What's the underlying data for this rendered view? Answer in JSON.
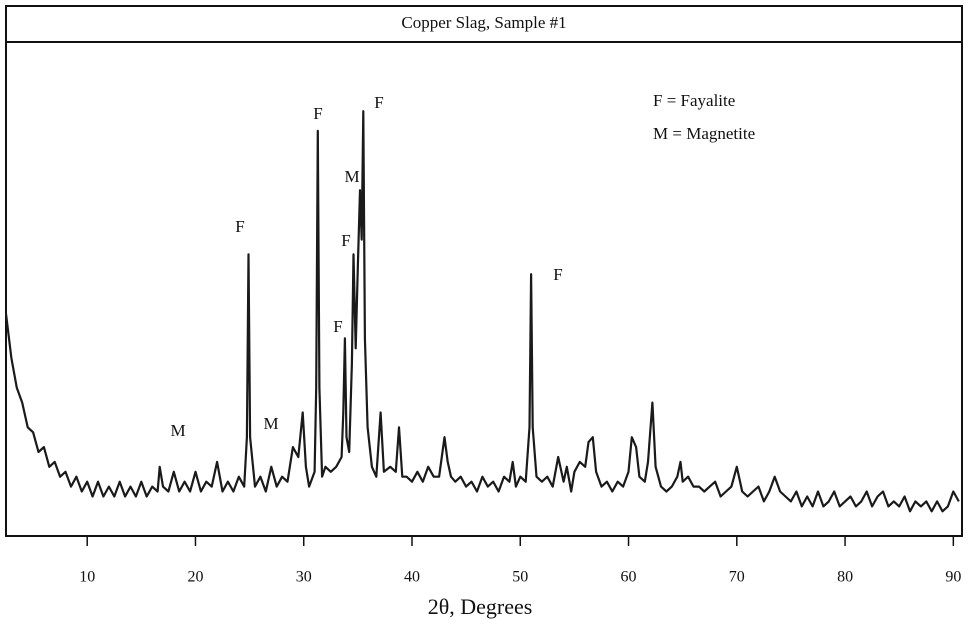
{
  "chart_data": {
    "type": "line",
    "title": "Copper Slag, Sample #1",
    "xlabel": "2θ, Degrees",
    "legend_texts": [
      "F = Fayalite",
      "M = Magnetite"
    ],
    "annotations": [
      "M",
      "M",
      "F",
      "F",
      "F",
      "M",
      "F",
      "F",
      "F"
    ],
    "color": "#1a1a1a",
    "xlim": [
      2.5,
      90.8
    ],
    "ylim": [
      0,
      100
    ],
    "xticks": [
      10,
      20,
      30,
      40,
      50,
      60,
      70,
      80,
      90
    ],
    "x": [
      2.5,
      3,
      3.5,
      4,
      4.5,
      5,
      5.5,
      6,
      6.5,
      7,
      7.5,
      8,
      8.5,
      9,
      9.5,
      10,
      10.5,
      11,
      11.5,
      12,
      12.5,
      13,
      13.5,
      14,
      14.5,
      15,
      15.5,
      16,
      16.5,
      16.7,
      17,
      17.5,
      18,
      18.5,
      19,
      19.5,
      20,
      20.5,
      21,
      21.5,
      22,
      22.5,
      23,
      23.5,
      24,
      24.5,
      24.75,
      24.9,
      25.05,
      25.5,
      26,
      26.5,
      27,
      27.5,
      28,
      28.5,
      29,
      29.5,
      29.9,
      30.2,
      30.5,
      31,
      31.15,
      31.3,
      31.45,
      31.7,
      32,
      32.5,
      33,
      33.5,
      33.65,
      33.8,
      33.95,
      34.2,
      34.45,
      34.6,
      34.8,
      35.0,
      35.2,
      35.35,
      35.5,
      35.65,
      35.9,
      36.3,
      36.7,
      37.1,
      37.4,
      38,
      38.5,
      38.8,
      39.1,
      39.5,
      40,
      40.5,
      41,
      41.5,
      42,
      42.5,
      43,
      43.3,
      43.6,
      44,
      44.5,
      45,
      45.5,
      46,
      46.5,
      47,
      47.5,
      48,
      48.5,
      49,
      49.3,
      49.6,
      50,
      50.5,
      50.85,
      51.0,
      51.15,
      51.5,
      52,
      52.5,
      53,
      53.5,
      54,
      54.3,
      54.7,
      55,
      55.5,
      56,
      56.3,
      56.7,
      57,
      57.5,
      58,
      58.5,
      59,
      59.5,
      60,
      60.3,
      60.7,
      61,
      61.5,
      61.8,
      62.2,
      62.5,
      63,
      63.5,
      64,
      64.5,
      64.8,
      65,
      65.5,
      66,
      66.5,
      67,
      67.5,
      68,
      68.5,
      69,
      69.5,
      70,
      70.5,
      71,
      71.5,
      72,
      72.5,
      73,
      73.5,
      74,
      74.5,
      75,
      75.5,
      76,
      76.5,
      77,
      77.5,
      78,
      78.5,
      79,
      79.5,
      80,
      80.5,
      81,
      81.5,
      82,
      82.5,
      83,
      83.5,
      84,
      84.5,
      85,
      85.5,
      86,
      86.5,
      87,
      87.5,
      88,
      88.5,
      89,
      89.5,
      90,
      90.5
    ],
    "values": [
      45,
      36,
      30,
      27,
      22,
      21,
      17,
      18,
      14,
      15,
      12,
      13,
      10,
      12,
      9,
      11,
      8,
      11,
      8,
      10,
      8,
      11,
      8,
      10,
      8,
      11,
      8,
      10,
      9,
      14,
      10,
      9,
      13,
      9,
      11,
      9,
      13,
      9,
      11,
      10,
      15,
      9,
      11,
      9,
      12,
      10,
      20,
      57,
      20,
      10,
      12,
      9,
      14,
      10,
      12,
      11,
      18,
      16,
      25,
      14,
      10,
      13,
      30,
      82,
      30,
      12,
      14,
      13,
      14,
      16,
      25,
      40,
      20,
      17,
      35,
      57,
      38,
      55,
      70,
      60,
      86,
      40,
      22,
      14,
      12,
      25,
      13,
      14,
      13,
      22,
      12,
      12,
      11,
      13,
      11,
      14,
      12,
      12,
      20,
      15,
      12,
      11,
      12,
      10,
      11,
      9,
      12,
      10,
      11,
      9,
      12,
      11,
      15,
      10,
      12,
      11,
      22,
      53,
      22,
      12,
      11,
      12,
      10,
      16,
      11,
      14,
      9,
      13,
      15,
      14,
      19,
      20,
      13,
      10,
      11,
      9,
      11,
      10,
      13,
      20,
      18,
      12,
      11,
      15,
      27,
      14,
      10,
      9,
      10,
      12,
      15,
      11,
      12,
      10,
      10,
      9,
      10,
      11,
      8,
      9,
      10,
      14,
      9,
      8,
      9,
      10,
      7,
      9,
      12,
      9,
      8,
      7,
      9,
      6,
      8,
      6,
      9,
      6,
      7,
      9,
      6,
      7,
      8,
      6,
      7,
      9,
      6,
      8,
      9,
      6,
      7,
      6,
      8,
      5,
      7,
      6,
      7,
      5,
      7,
      5,
      6,
      9,
      7
    ]
  }
}
